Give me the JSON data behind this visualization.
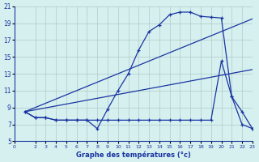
{
  "background_color": "#d6f0f0",
  "grid_color": "#b0c8c8",
  "line_color": "#1a35a0",
  "title": "Graphe des températures (°c)",
  "xlim": [
    0,
    23
  ],
  "ylim": [
    5,
    21
  ],
  "yticks": [
    5,
    7,
    9,
    11,
    13,
    15,
    17,
    19,
    21
  ],
  "xticks": [
    0,
    2,
    3,
    4,
    5,
    6,
    7,
    8,
    9,
    10,
    11,
    12,
    13,
    14,
    15,
    16,
    17,
    18,
    19,
    20,
    21,
    22,
    23
  ],
  "series1_x": [
    1,
    2,
    3,
    4,
    5,
    6,
    7,
    8,
    9,
    10,
    11,
    12,
    13,
    14,
    15,
    16,
    17,
    18,
    19,
    20,
    21,
    22,
    23
  ],
  "series1_y": [
    8.5,
    7.8,
    7.8,
    7.5,
    7.5,
    7.5,
    7.5,
    6.5,
    8.8,
    11.0,
    13.0,
    15.8,
    18.0,
    18.8,
    20.0,
    20.3,
    20.3,
    19.8,
    19.7,
    19.6,
    10.3,
    8.5,
    6.5
  ],
  "series2_x": [
    1,
    2,
    3,
    4,
    5,
    6,
    7,
    8,
    9,
    10,
    11,
    12,
    13,
    14,
    15,
    16,
    17,
    18,
    19,
    20,
    21,
    22,
    23
  ],
  "series2_y": [
    8.5,
    7.8,
    7.8,
    7.5,
    7.5,
    7.5,
    7.5,
    7.5,
    7.5,
    7.5,
    7.5,
    7.5,
    7.5,
    7.5,
    7.5,
    7.5,
    7.5,
    7.5,
    7.5,
    14.5,
    10.3,
    7.0,
    6.5
  ],
  "series3_x": [
    1,
    23
  ],
  "series3_y": [
    8.5,
    19.5
  ],
  "series4_x": [
    1,
    23
  ],
  "series4_y": [
    8.5,
    13.5
  ]
}
